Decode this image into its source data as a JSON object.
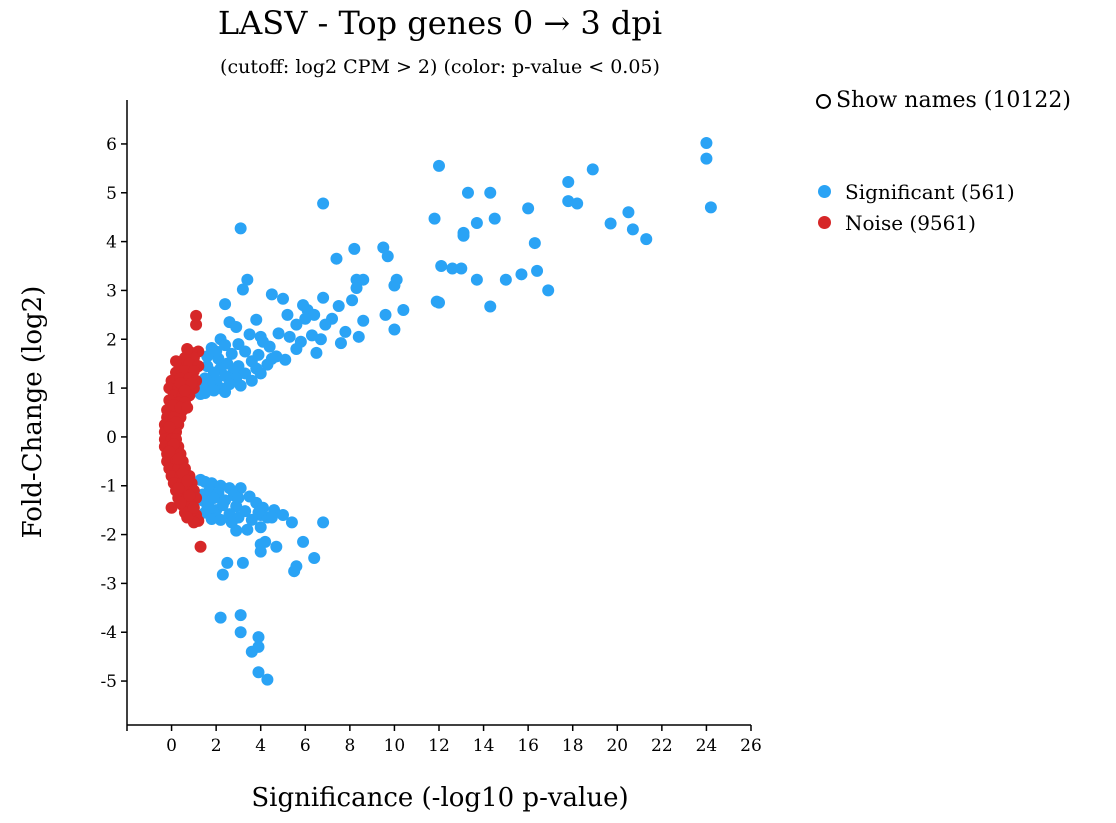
{
  "title": "LASV - Top genes 0 → 3 dpi",
  "subtitle": "(cutoff: log2 CPM > 2) (color: p-value < 0.05)",
  "toggle": {
    "label": "Show names (10122)",
    "checked": false
  },
  "legend": [
    {
      "label": "Significant (561)",
      "color": "#2aa3f5"
    },
    {
      "label": "Noise (9561)",
      "color": "#d62728"
    }
  ],
  "chart_data": {
    "type": "scatter",
    "xlabel": "Significance (-log10 p-value)",
    "ylabel": "Fold-Change (log2)",
    "xlim": [
      -2,
      26
    ],
    "ylim": [
      -5.9,
      6.9
    ],
    "xticks": [
      0,
      2,
      4,
      6,
      8,
      10,
      12,
      14,
      16,
      18,
      20,
      22,
      24,
      26
    ],
    "yticks": [
      -5,
      -4,
      -3,
      -2,
      -1,
      0,
      1,
      2,
      3,
      4,
      5,
      6
    ],
    "series": [
      {
        "name": "Significant (561)",
        "color": "#2aa3f5",
        "points": [
          [
            24.0,
            6.02
          ],
          [
            24.0,
            5.7
          ],
          [
            24.2,
            4.7
          ],
          [
            12.0,
            5.55
          ],
          [
            18.9,
            5.48
          ],
          [
            17.8,
            5.22
          ],
          [
            13.3,
            5.0
          ],
          [
            14.3,
            5.0
          ],
          [
            17.8,
            4.83
          ],
          [
            18.2,
            4.78
          ],
          [
            6.8,
            4.78
          ],
          [
            16.0,
            4.68
          ],
          [
            20.5,
            4.6
          ],
          [
            11.8,
            4.47
          ],
          [
            14.5,
            4.47
          ],
          [
            13.7,
            4.38
          ],
          [
            19.7,
            4.37
          ],
          [
            3.1,
            4.27
          ],
          [
            20.7,
            4.25
          ],
          [
            13.1,
            4.18
          ],
          [
            13.1,
            4.12
          ],
          [
            21.3,
            4.05
          ],
          [
            16.3,
            3.97
          ],
          [
            9.5,
            3.88
          ],
          [
            8.2,
            3.85
          ],
          [
            9.7,
            3.7
          ],
          [
            7.4,
            3.65
          ],
          [
            12.1,
            3.5
          ],
          [
            12.6,
            3.45
          ],
          [
            13.0,
            3.45
          ],
          [
            16.4,
            3.4
          ],
          [
            15.7,
            3.33
          ],
          [
            3.4,
            3.22
          ],
          [
            8.3,
            3.22
          ],
          [
            8.6,
            3.22
          ],
          [
            10.1,
            3.22
          ],
          [
            13.7,
            3.22
          ],
          [
            15.0,
            3.22
          ],
          [
            10.0,
            3.1
          ],
          [
            8.3,
            3.05
          ],
          [
            3.2,
            3.02
          ],
          [
            16.9,
            3.0
          ],
          [
            4.5,
            2.92
          ],
          [
            6.8,
            2.85
          ],
          [
            5.0,
            2.83
          ],
          [
            8.1,
            2.8
          ],
          [
            11.9,
            2.77
          ],
          [
            12.0,
            2.75
          ],
          [
            2.4,
            2.72
          ],
          [
            5.9,
            2.7
          ],
          [
            7.5,
            2.68
          ],
          [
            14.3,
            2.67
          ],
          [
            6.1,
            2.6
          ],
          [
            10.4,
            2.6
          ],
          [
            9.6,
            2.5
          ],
          [
            6.4,
            2.5
          ],
          [
            5.2,
            2.5
          ],
          [
            7.2,
            2.42
          ],
          [
            6.0,
            2.42
          ],
          [
            3.8,
            2.4
          ],
          [
            8.6,
            2.38
          ],
          [
            2.6,
            2.35
          ],
          [
            5.6,
            2.3
          ],
          [
            6.9,
            2.3
          ],
          [
            2.9,
            2.25
          ],
          [
            10.0,
            2.2
          ],
          [
            7.8,
            2.15
          ],
          [
            3.5,
            2.1
          ],
          [
            4.8,
            2.12
          ],
          [
            6.3,
            2.08
          ],
          [
            5.3,
            2.05
          ],
          [
            8.4,
            2.05
          ],
          [
            4.0,
            2.05
          ],
          [
            2.2,
            2.0
          ],
          [
            6.7,
            2.0
          ],
          [
            5.8,
            1.95
          ],
          [
            4.1,
            1.95
          ],
          [
            7.6,
            1.92
          ],
          [
            3.0,
            1.9
          ],
          [
            2.4,
            1.88
          ],
          [
            4.4,
            1.85
          ],
          [
            1.8,
            1.82
          ],
          [
            5.6,
            1.8
          ],
          [
            3.3,
            1.75
          ],
          [
            6.5,
            1.72
          ],
          [
            2.7,
            1.7
          ],
          [
            3.9,
            1.68
          ],
          [
            4.7,
            1.65
          ],
          [
            2.1,
            1.6
          ],
          [
            5.1,
            1.58
          ],
          [
            3.6,
            1.55
          ],
          [
            2.5,
            1.5
          ],
          [
            4.3,
            1.48
          ],
          [
            1.6,
            1.45
          ],
          [
            3.0,
            1.45
          ],
          [
            2.2,
            1.4
          ],
          [
            3.8,
            1.4
          ],
          [
            2.8,
            1.35
          ],
          [
            1.9,
            1.32
          ],
          [
            3.3,
            1.3
          ],
          [
            2.4,
            1.25
          ],
          [
            1.5,
            1.2
          ],
          [
            2.9,
            1.2
          ],
          [
            2.0,
            1.15
          ],
          [
            3.6,
            1.15
          ],
          [
            1.7,
            1.1
          ],
          [
            2.6,
            1.08
          ],
          [
            1.4,
            1.02
          ],
          [
            2.2,
            1.0
          ],
          [
            1.9,
            0.95
          ],
          [
            3.1,
            1.05
          ],
          [
            4.0,
            1.3
          ],
          [
            4.5,
            1.6
          ],
          [
            2.0,
            1.75
          ],
          [
            1.6,
            1.65
          ],
          [
            1.3,
            0.88
          ],
          [
            1.5,
            0.9
          ],
          [
            2.4,
            0.92
          ],
          [
            1.3,
            -0.88
          ],
          [
            1.5,
            -0.92
          ],
          [
            1.8,
            -0.95
          ],
          [
            2.2,
            -1.0
          ],
          [
            2.6,
            -1.05
          ],
          [
            3.1,
            -1.05
          ],
          [
            1.7,
            -1.1
          ],
          [
            2.1,
            -1.15
          ],
          [
            1.4,
            -1.18
          ],
          [
            2.8,
            -1.2
          ],
          [
            3.5,
            -1.22
          ],
          [
            1.9,
            -1.25
          ],
          [
            2.4,
            -1.3
          ],
          [
            3.8,
            -1.35
          ],
          [
            1.6,
            -1.4
          ],
          [
            2.9,
            -1.42
          ],
          [
            4.1,
            -1.45
          ],
          [
            2.0,
            -1.5
          ],
          [
            4.6,
            -1.5
          ],
          [
            3.3,
            -1.52
          ],
          [
            1.5,
            -1.55
          ],
          [
            2.6,
            -1.58
          ],
          [
            4.0,
            -1.6
          ],
          [
            5.0,
            -1.6
          ],
          [
            3.0,
            -1.65
          ],
          [
            4.3,
            -1.65
          ],
          [
            1.8,
            -1.68
          ],
          [
            2.2,
            -1.7
          ],
          [
            3.6,
            -1.7
          ],
          [
            5.4,
            -1.75
          ],
          [
            6.8,
            -1.75
          ],
          [
            4.0,
            -1.85
          ],
          [
            2.9,
            -1.92
          ],
          [
            4.2,
            -2.15
          ],
          [
            4.0,
            -2.2
          ],
          [
            4.7,
            -2.25
          ],
          [
            5.9,
            -2.15
          ],
          [
            4.0,
            -2.35
          ],
          [
            6.4,
            -2.48
          ],
          [
            2.5,
            -2.58
          ],
          [
            3.2,
            -2.58
          ],
          [
            5.6,
            -2.65
          ],
          [
            5.5,
            -2.75
          ],
          [
            2.3,
            -2.82
          ],
          [
            2.2,
            -3.7
          ],
          [
            3.1,
            -3.65
          ],
          [
            3.1,
            -4.0
          ],
          [
            3.9,
            -4.1
          ],
          [
            3.9,
            -4.3
          ],
          [
            3.6,
            -4.4
          ],
          [
            3.9,
            -4.82
          ],
          [
            4.3,
            -4.97
          ],
          [
            3.4,
            -1.9
          ],
          [
            2.7,
            -1.75
          ],
          [
            1.7,
            -1.45
          ],
          [
            1.4,
            -1.3
          ],
          [
            3.9,
            -1.55
          ],
          [
            2.3,
            -1.4
          ],
          [
            3.0,
            -1.25
          ],
          [
            4.5,
            -1.65
          ]
        ]
      },
      {
        "name": "Noise (9561)",
        "color": "#d62728",
        "points": [
          [
            1.1,
            2.48
          ],
          [
            1.1,
            2.3
          ],
          [
            1.2,
            1.75
          ],
          [
            0.9,
            1.72
          ],
          [
            0.6,
            1.62
          ],
          [
            1.0,
            1.62
          ],
          [
            0.4,
            1.5
          ],
          [
            0.8,
            1.5
          ],
          [
            1.2,
            1.45
          ],
          [
            0.2,
            1.32
          ],
          [
            0.6,
            1.35
          ],
          [
            1.0,
            1.35
          ],
          [
            0.0,
            1.15
          ],
          [
            0.4,
            1.2
          ],
          [
            0.8,
            1.2
          ],
          [
            1.1,
            1.15
          ],
          [
            -0.1,
            1.0
          ],
          [
            0.3,
            1.0
          ],
          [
            0.7,
            1.0
          ],
          [
            1.0,
            1.0
          ],
          [
            0.1,
            0.85
          ],
          [
            0.5,
            0.85
          ],
          [
            0.8,
            0.85
          ],
          [
            -0.1,
            0.75
          ],
          [
            0.3,
            0.7
          ],
          [
            0.6,
            0.7
          ],
          [
            -0.2,
            0.55
          ],
          [
            0.2,
            0.55
          ],
          [
            0.5,
            0.55
          ],
          [
            -0.2,
            0.4
          ],
          [
            0.1,
            0.4
          ],
          [
            0.4,
            0.4
          ],
          [
            -0.3,
            0.25
          ],
          [
            0.0,
            0.25
          ],
          [
            0.3,
            0.25
          ],
          [
            -0.3,
            0.1
          ],
          [
            0.0,
            0.1
          ],
          [
            0.2,
            0.1
          ],
          [
            -0.3,
            -0.05
          ],
          [
            0.0,
            -0.05
          ],
          [
            0.2,
            -0.05
          ],
          [
            -0.3,
            -0.2
          ],
          [
            0.0,
            -0.2
          ],
          [
            0.3,
            -0.2
          ],
          [
            -0.2,
            -0.35
          ],
          [
            0.1,
            -0.35
          ],
          [
            0.4,
            -0.35
          ],
          [
            -0.2,
            -0.5
          ],
          [
            0.2,
            -0.5
          ],
          [
            0.5,
            -0.5
          ],
          [
            -0.1,
            -0.65
          ],
          [
            0.3,
            -0.65
          ],
          [
            0.6,
            -0.65
          ],
          [
            0.0,
            -0.8
          ],
          [
            0.4,
            -0.8
          ],
          [
            0.8,
            -0.8
          ],
          [
            0.1,
            -0.95
          ],
          [
            0.5,
            -0.95
          ],
          [
            0.9,
            -0.95
          ],
          [
            0.2,
            -1.1
          ],
          [
            0.6,
            -1.1
          ],
          [
            1.0,
            -1.1
          ],
          [
            0.3,
            -1.25
          ],
          [
            0.7,
            -1.25
          ],
          [
            1.1,
            -1.25
          ],
          [
            0.0,
            -1.45
          ],
          [
            0.5,
            -1.4
          ],
          [
            0.9,
            -1.4
          ],
          [
            0.8,
            -1.55
          ],
          [
            1.1,
            -1.6
          ],
          [
            0.6,
            -1.55
          ],
          [
            1.2,
            -1.72
          ],
          [
            1.0,
            -1.75
          ],
          [
            1.3,
            -2.25
          ],
          [
            0.2,
            1.55
          ],
          [
            0.7,
            1.8
          ],
          [
            0.4,
            1.1
          ],
          [
            0.9,
            1.1
          ],
          [
            0.6,
            0.95
          ],
          [
            0.1,
            0.65
          ],
          [
            0.4,
            0.6
          ],
          [
            0.7,
            0.6
          ],
          [
            0.2,
            0.3
          ],
          [
            -0.1,
            0.2
          ],
          [
            0.1,
            -0.15
          ],
          [
            -0.1,
            -0.3
          ],
          [
            0.3,
            -0.45
          ],
          [
            0.5,
            -0.75
          ],
          [
            0.7,
            -0.9
          ],
          [
            0.3,
            -1.05
          ],
          [
            0.8,
            -1.2
          ],
          [
            0.4,
            -1.35
          ],
          [
            1.0,
            -1.45
          ],
          [
            0.7,
            -1.65
          ]
        ]
      }
    ]
  }
}
